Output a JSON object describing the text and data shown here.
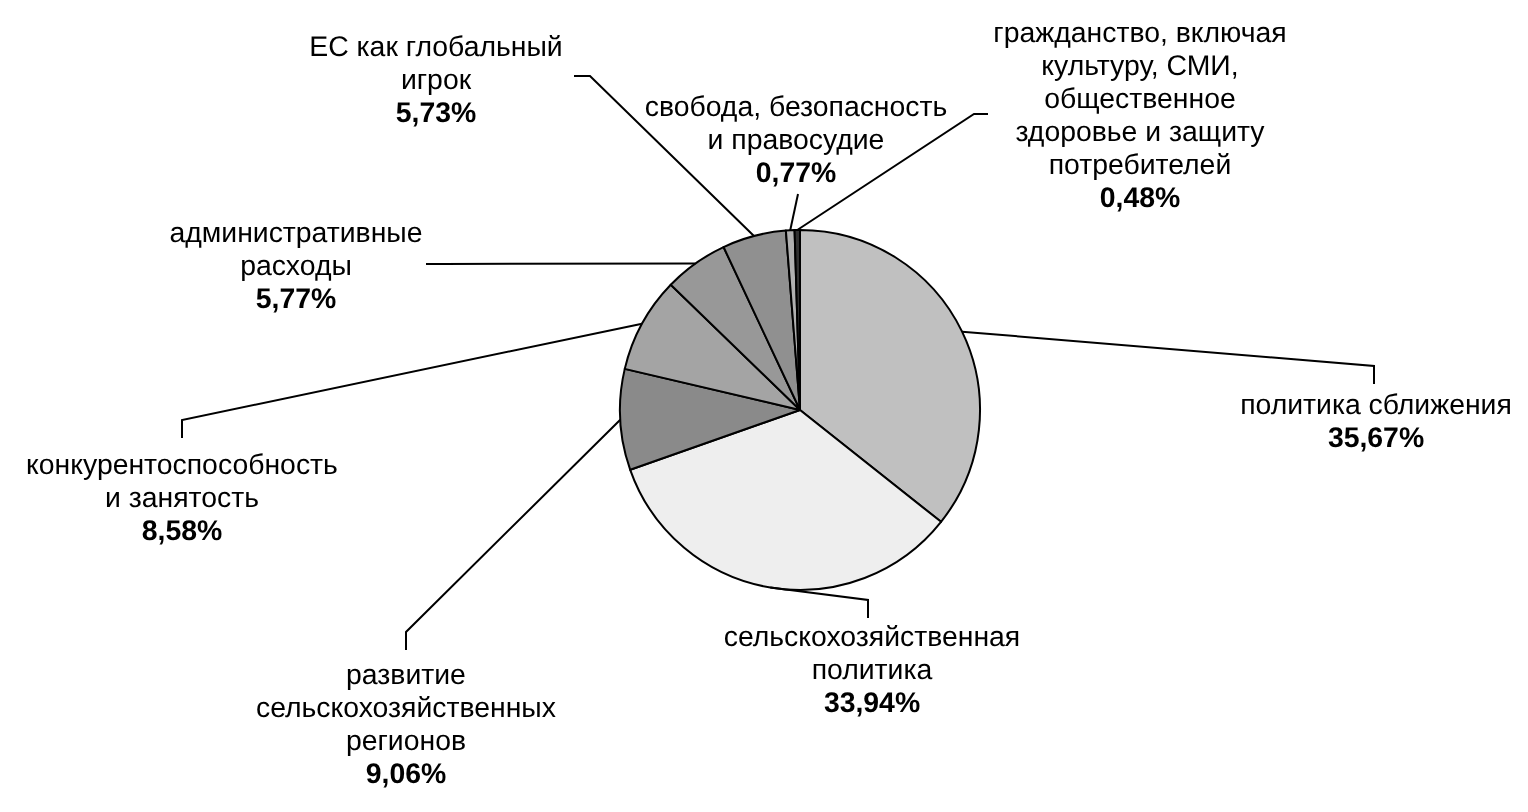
{
  "chart_data": {
    "type": "pie",
    "categories": [
      "политика сближения",
      "сельскохозяйственная политика",
      "развитие сельскохозяйственных регионов",
      "конкурентоспособность и занятость",
      "административные расходы",
      "ЕС как глобальный игрок",
      "свобода, безопасность и правосудие",
      "гражданство, включая культуру, СМИ, общественное здоровье и защиту потребителей"
    ],
    "values": [
      35.67,
      33.94,
      9.06,
      8.58,
      5.77,
      5.73,
      0.77,
      0.48
    ],
    "value_labels": [
      "35,67%",
      "33,94%",
      "9,06%",
      "8,58%",
      "5,77%",
      "5,73%",
      "0,77%",
      "0,48%"
    ],
    "colors": [
      "#c0c0c0",
      "#eeeeee",
      "#8a8a8a",
      "#a4a4a4",
      "#989898",
      "#909090",
      "#b0b0b0",
      "#303030"
    ]
  }
}
